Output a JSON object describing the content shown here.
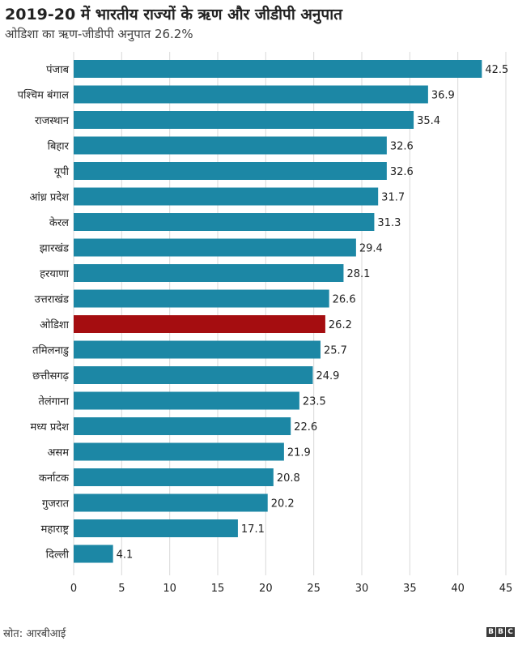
{
  "header": {
    "title": "2019-20 में भारतीय राज्यों के ऋण और जीडीपी अनुपात",
    "subtitle": "ओडिशा का ऋण-जीडीपी अनुपात 26.2%"
  },
  "footer": {
    "source": "स्रोत: आरबीआई",
    "logo_letters": [
      "B",
      "B",
      "C"
    ]
  },
  "colors": {
    "bar": "#1c87a5",
    "highlight": "#a50d10",
    "grid": "#d9d9d9",
    "axis_text": "#222222"
  },
  "chart_data": {
    "type": "bar",
    "orientation": "horizontal",
    "categories": [
      "पंजाब",
      "पश्चिम बंगाल",
      "राजस्थान",
      "बिहार",
      "यूपी",
      "आंध्र प्रदेश",
      "केरल",
      "झारखंड",
      "हरयाणा",
      "उत्तराखंड",
      "ओडिशा",
      "तमिलनाडु",
      "छत्तीसगढ़",
      "तेलंगाना",
      "मध्य प्रदेश",
      "असम",
      "कर्नाटक",
      "गुजरात",
      "महाराष्ट्र",
      "दिल्ली"
    ],
    "values": [
      42.5,
      36.9,
      35.4,
      32.6,
      32.6,
      31.7,
      31.3,
      29.4,
      28.1,
      26.6,
      26.2,
      25.7,
      24.9,
      23.5,
      22.6,
      21.9,
      20.8,
      20.2,
      17.1,
      4.1
    ],
    "value_labels": [
      "42.5",
      "36.9",
      "35.4",
      "32.6",
      "32.6",
      "31.7",
      "31.3",
      "29.4",
      "28.1",
      "26.6",
      "26.2",
      "25.7",
      "24.9",
      "23.5",
      "22.6",
      "21.9",
      "20.8",
      "20.2",
      "17.1",
      "4.1"
    ],
    "highlight": "ओडिशा",
    "xlim": [
      0,
      45
    ],
    "xticks": [
      0,
      5,
      10,
      15,
      20,
      25,
      30,
      35,
      40,
      45
    ],
    "xtick_labels": [
      "0",
      "5",
      "10",
      "15",
      "20",
      "25",
      "30",
      "35",
      "40",
      "45"
    ],
    "grid": true,
    "legend": "none"
  }
}
